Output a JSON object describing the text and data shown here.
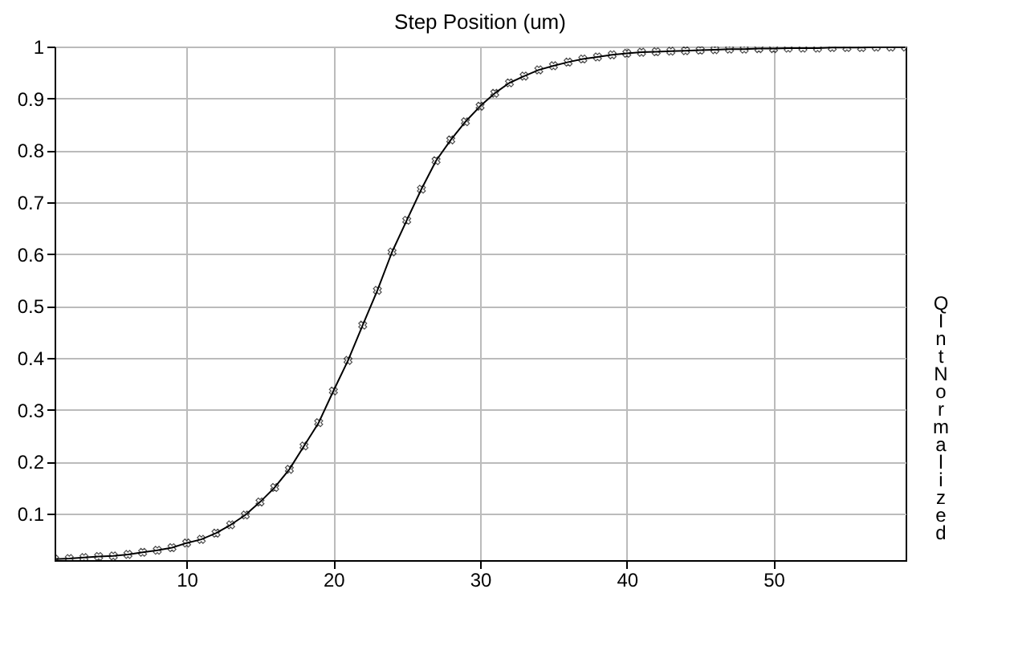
{
  "chart_data": {
    "type": "line",
    "title": "Step Position (um)",
    "ylabel": "QInt Normalized",
    "x": [
      1,
      2,
      3,
      4,
      5,
      6,
      7,
      8,
      9,
      10,
      11,
      12,
      13,
      14,
      15,
      16,
      17,
      18,
      19,
      20,
      21,
      22,
      23,
      24,
      25,
      26,
      27,
      28,
      29,
      30,
      31,
      32,
      33,
      34,
      35,
      36,
      37,
      38,
      39,
      40,
      41,
      42,
      43,
      44,
      45,
      46,
      47,
      48,
      49,
      50,
      51,
      52,
      53,
      54,
      55,
      56,
      57,
      58,
      59
    ],
    "series": [
      {
        "color": "#000000",
        "values": [
          0.012,
          0.013,
          0.015,
          0.017,
          0.018,
          0.021,
          0.025,
          0.029,
          0.034,
          0.043,
          0.05,
          0.062,
          0.078,
          0.097,
          0.122,
          0.15,
          0.185,
          0.23,
          0.275,
          0.336,
          0.395,
          0.463,
          0.53,
          0.604,
          0.665,
          0.725,
          0.78,
          0.82,
          0.855,
          0.885,
          0.91,
          0.93,
          0.943,
          0.955,
          0.963,
          0.97,
          0.976,
          0.98,
          0.984,
          0.987,
          0.989,
          0.99,
          0.991,
          0.992,
          0.993,
          0.994,
          0.995,
          0.995,
          0.996,
          0.996,
          0.997,
          0.997,
          0.997,
          0.998,
          0.998,
          0.998,
          0.999,
          0.999,
          0.999
        ]
      }
    ],
    "xlim": [
      1,
      59
    ],
    "ylim": [
      0.01,
      1
    ],
    "xticks": [
      10,
      20,
      30,
      40,
      50
    ],
    "yticks": [
      0.1,
      0.2,
      0.3,
      0.4,
      0.5,
      0.6,
      0.7,
      0.8,
      0.9,
      1
    ],
    "grid": true,
    "marker": "cross",
    "line_style": "solid"
  }
}
